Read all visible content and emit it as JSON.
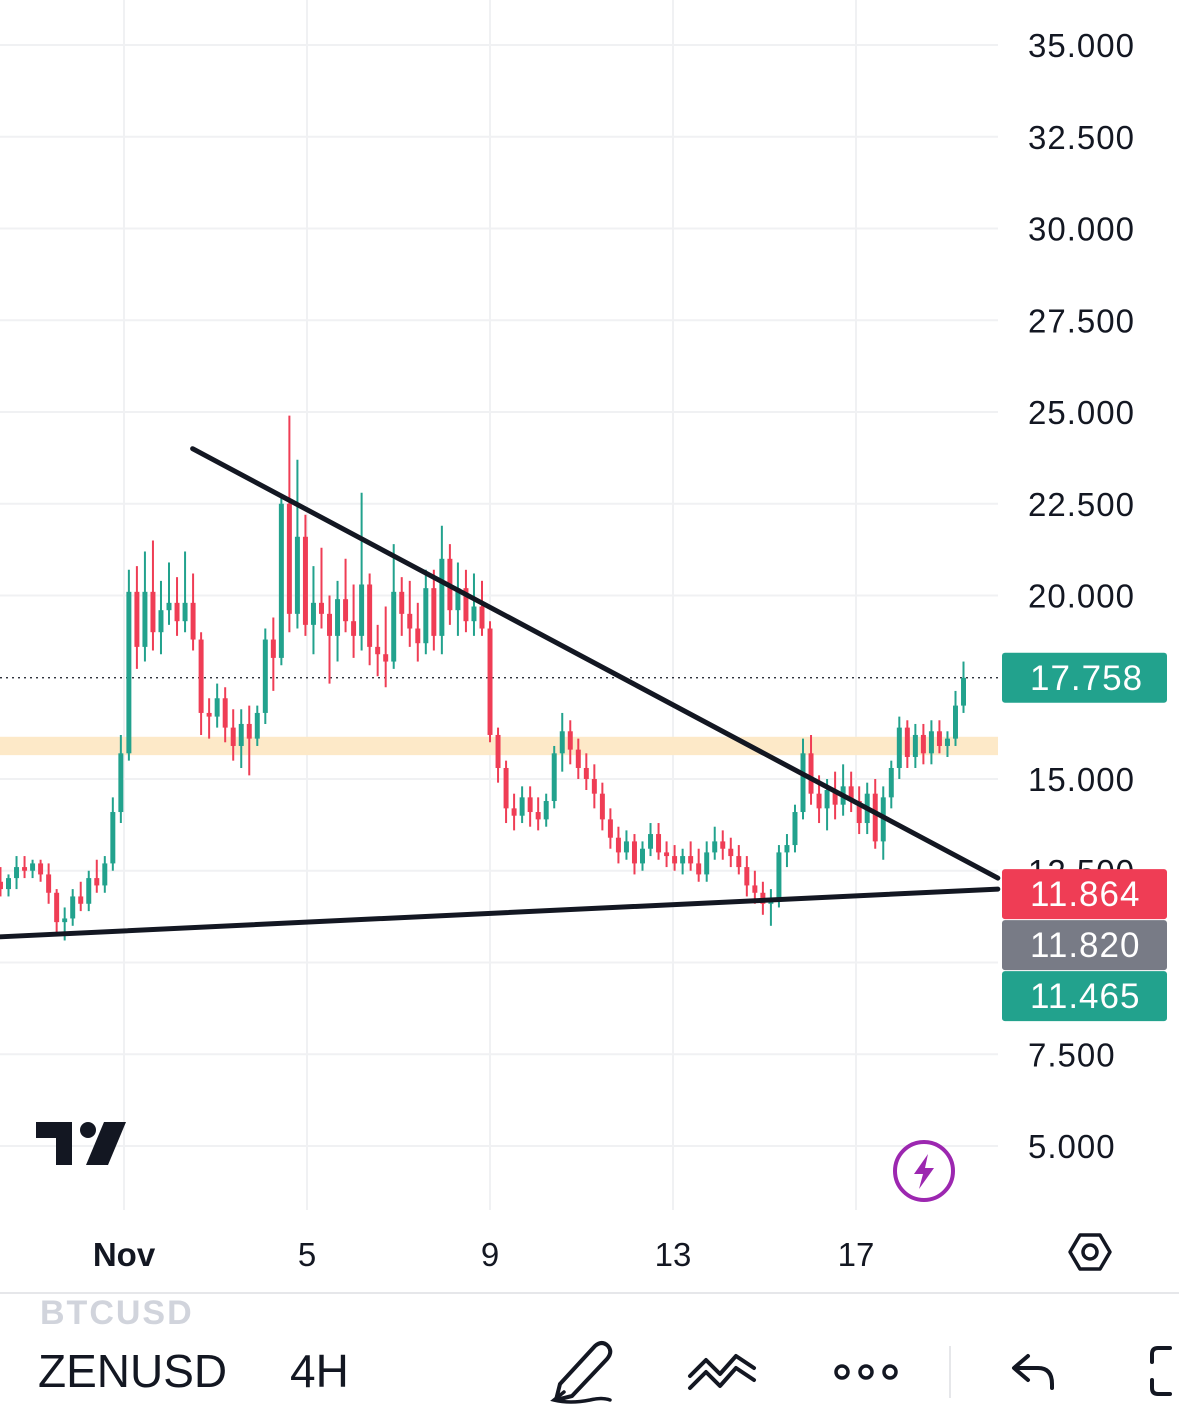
{
  "chart_data": {
    "type": "candlestick",
    "symbol": "ZENUSD",
    "interval": "4H",
    "y_axis": {
      "ticks": [
        "35.000",
        "32.500",
        "30.000",
        "27.500",
        "25.000",
        "22.500",
        "20.000",
        "15.000",
        "12.500",
        "7.500",
        "5.000"
      ],
      "ylim": [
        3.0,
        36.0
      ]
    },
    "x_axis": {
      "ticks": [
        {
          "label": "Nov",
          "day": 1
        },
        {
          "label": "5",
          "day": 5
        },
        {
          "label": "9",
          "day": 9
        },
        {
          "label": "13",
          "day": 13
        },
        {
          "label": "17",
          "day": 17
        }
      ],
      "xlim": [
        -1.7,
        21.8
      ]
    },
    "ohlc": [
      [
        12.2,
        12.6,
        11.8,
        12.0
      ],
      [
        12.0,
        12.4,
        11.8,
        12.3
      ],
      [
        12.3,
        12.9,
        12.0,
        12.6
      ],
      [
        12.6,
        12.9,
        12.3,
        12.5
      ],
      [
        12.5,
        12.8,
        12.3,
        12.7
      ],
      [
        12.7,
        12.8,
        12.2,
        12.4
      ],
      [
        12.4,
        12.7,
        11.6,
        11.9
      ],
      [
        11.9,
        12.0,
        10.8,
        11.1
      ],
      [
        11.1,
        11.5,
        10.6,
        11.2
      ],
      [
        11.2,
        12.0,
        11.0,
        11.8
      ],
      [
        11.8,
        12.2,
        11.4,
        11.6
      ],
      [
        11.6,
        12.5,
        11.4,
        12.3
      ],
      [
        12.3,
        12.8,
        11.9,
        12.1
      ],
      [
        12.1,
        12.9,
        11.9,
        12.7
      ],
      [
        12.7,
        14.5,
        12.5,
        14.1
      ],
      [
        14.1,
        16.2,
        13.8,
        15.7
      ],
      [
        15.7,
        20.7,
        15.5,
        20.1
      ],
      [
        20.1,
        20.8,
        18.0,
        18.6
      ],
      [
        18.6,
        21.2,
        18.2,
        20.1
      ],
      [
        20.1,
        21.5,
        18.5,
        19.0
      ],
      [
        19.0,
        20.4,
        18.4,
        19.6
      ],
      [
        19.6,
        20.9,
        19.2,
        19.8
      ],
      [
        19.8,
        20.5,
        18.9,
        19.3
      ],
      [
        19.3,
        21.2,
        19.0,
        19.8
      ],
      [
        19.8,
        20.6,
        18.5,
        18.8
      ],
      [
        18.8,
        19.0,
        16.2,
        16.8
      ],
      [
        16.8,
        17.2,
        16.1,
        16.7
      ],
      [
        16.7,
        17.6,
        16.4,
        17.2
      ],
      [
        17.2,
        17.5,
        16.0,
        16.4
      ],
      [
        16.4,
        16.9,
        15.5,
        15.9
      ],
      [
        15.9,
        16.9,
        15.3,
        16.5
      ],
      [
        16.5,
        17.0,
        15.1,
        16.1
      ],
      [
        16.1,
        17.0,
        15.9,
        16.8
      ],
      [
        16.8,
        19.1,
        16.5,
        18.8
      ],
      [
        18.8,
        19.4,
        17.4,
        18.3
      ],
      [
        18.3,
        22.7,
        18.1,
        22.5
      ],
      [
        22.5,
        24.9,
        19.0,
        19.5
      ],
      [
        19.5,
        23.7,
        19.1,
        21.6
      ],
      [
        21.6,
        22.2,
        18.9,
        19.2
      ],
      [
        19.2,
        20.8,
        18.4,
        19.8
      ],
      [
        19.8,
        21.3,
        19.1,
        19.5
      ],
      [
        19.5,
        20.0,
        17.6,
        18.9
      ],
      [
        18.9,
        20.4,
        18.2,
        19.9
      ],
      [
        19.9,
        21.0,
        19.0,
        19.3
      ],
      [
        19.3,
        20.3,
        18.3,
        18.9
      ],
      [
        18.9,
        22.8,
        18.5,
        20.3
      ],
      [
        20.3,
        20.6,
        18.1,
        18.6
      ],
      [
        18.6,
        19.2,
        17.8,
        18.4
      ],
      [
        18.4,
        19.7,
        17.5,
        18.2
      ],
      [
        18.2,
        21.4,
        18.0,
        20.1
      ],
      [
        20.1,
        20.5,
        18.9,
        19.5
      ],
      [
        19.5,
        20.4,
        18.6,
        19.1
      ],
      [
        19.1,
        19.8,
        18.2,
        18.7
      ],
      [
        18.7,
        20.7,
        18.4,
        20.2
      ],
      [
        20.2,
        20.7,
        18.5,
        18.9
      ],
      [
        18.9,
        21.9,
        18.4,
        21.0
      ],
      [
        21.0,
        21.4,
        19.2,
        19.6
      ],
      [
        19.6,
        20.9,
        18.9,
        20.2
      ],
      [
        20.2,
        20.7,
        19.0,
        19.3
      ],
      [
        19.3,
        20.6,
        18.9,
        19.7
      ],
      [
        19.7,
        20.4,
        18.9,
        19.1
      ],
      [
        19.1,
        19.3,
        16.0,
        16.2
      ],
      [
        16.2,
        16.4,
        14.9,
        15.3
      ],
      [
        15.3,
        15.5,
        13.8,
        14.2
      ],
      [
        14.2,
        14.6,
        13.6,
        14.0
      ],
      [
        14.0,
        14.8,
        13.8,
        14.5
      ],
      [
        14.5,
        14.8,
        13.7,
        14.1
      ],
      [
        14.1,
        14.5,
        13.6,
        13.9
      ],
      [
        13.9,
        14.6,
        13.7,
        14.4
      ],
      [
        14.4,
        15.9,
        14.2,
        15.7
      ],
      [
        15.7,
        16.8,
        15.2,
        16.3
      ],
      [
        16.3,
        16.6,
        15.4,
        15.8
      ],
      [
        15.8,
        16.1,
        15.0,
        15.3
      ],
      [
        15.3,
        15.7,
        14.7,
        15.0
      ],
      [
        15.0,
        15.4,
        14.2,
        14.6
      ],
      [
        14.6,
        14.9,
        13.6,
        13.9
      ],
      [
        13.9,
        14.2,
        13.1,
        13.4
      ],
      [
        13.4,
        13.7,
        12.7,
        13.0
      ],
      [
        13.0,
        13.6,
        12.8,
        13.3
      ],
      [
        13.3,
        13.5,
        12.4,
        12.7
      ],
      [
        12.7,
        13.3,
        12.5,
        13.1
      ],
      [
        13.1,
        13.8,
        12.9,
        13.5
      ],
      [
        13.5,
        13.8,
        12.8,
        13.0
      ],
      [
        13.0,
        13.3,
        12.6,
        12.9
      ],
      [
        12.9,
        13.2,
        12.5,
        12.7
      ],
      [
        12.7,
        13.1,
        12.4,
        12.9
      ],
      [
        12.9,
        13.3,
        12.5,
        12.7
      ],
      [
        12.7,
        13.1,
        12.2,
        12.4
      ],
      [
        12.4,
        13.3,
        12.2,
        13.0
      ],
      [
        13.0,
        13.7,
        12.8,
        13.3
      ],
      [
        13.3,
        13.6,
        12.8,
        13.1
      ],
      [
        13.1,
        13.4,
        12.6,
        12.9
      ],
      [
        12.9,
        13.2,
        12.4,
        12.6
      ],
      [
        12.6,
        12.9,
        11.8,
        12.1
      ],
      [
        12.1,
        12.5,
        11.6,
        11.9
      ],
      [
        11.9,
        12.2,
        11.3,
        11.6
      ],
      [
        11.6,
        12.0,
        11.0,
        11.7
      ],
      [
        11.7,
        13.2,
        11.5,
        13.0
      ],
      [
        13.0,
        13.5,
        12.6,
        13.2
      ],
      [
        13.2,
        14.3,
        13.0,
        14.1
      ],
      [
        14.1,
        16.1,
        13.9,
        15.7
      ],
      [
        15.7,
        16.2,
        14.3,
        14.6
      ],
      [
        14.6,
        15.1,
        13.8,
        14.2
      ],
      [
        14.2,
        15.0,
        13.6,
        14.7
      ],
      [
        14.7,
        15.2,
        13.9,
        14.3
      ],
      [
        14.3,
        15.4,
        14.0,
        14.8
      ],
      [
        14.8,
        15.2,
        14.1,
        14.4
      ],
      [
        14.4,
        14.8,
        13.5,
        13.8
      ],
      [
        13.8,
        14.9,
        13.5,
        14.6
      ],
      [
        14.6,
        15.0,
        13.1,
        13.3
      ],
      [
        13.3,
        14.8,
        12.8,
        14.5
      ],
      [
        14.5,
        15.5,
        14.2,
        15.3
      ],
      [
        15.3,
        16.7,
        15.0,
        16.4
      ],
      [
        16.4,
        16.6,
        15.3,
        15.6
      ],
      [
        15.6,
        16.5,
        15.3,
        16.2
      ],
      [
        16.2,
        16.5,
        15.4,
        15.7
      ],
      [
        15.7,
        16.6,
        15.4,
        16.3
      ],
      [
        16.3,
        16.6,
        15.7,
        15.9
      ],
      [
        15.9,
        16.3,
        15.6,
        16.1
      ],
      [
        16.1,
        17.4,
        15.9,
        17.0
      ],
      [
        17.0,
        18.2,
        16.8,
        17.758
      ]
    ],
    "bull_color": "#22a28d",
    "bear_color": "#ef3d55",
    "last_day": 19.35,
    "trendlines": [
      {
        "name": "descending-resistance",
        "from": [
          2.5,
          24.0
        ],
        "to": [
          20.1,
          12.3
        ]
      },
      {
        "name": "ascending-support",
        "from": [
          -1.7,
          10.7
        ],
        "to": [
          20.1,
          12.0
        ]
      }
    ],
    "zone": {
      "from": 15.65,
      "to": 16.15,
      "color": "#fde9c8"
    },
    "current_price_line": 17.758,
    "price_badges": [
      {
        "value": "17.758",
        "price": 17.758,
        "color": "#22a28d"
      },
      {
        "value": "11.864",
        "price": 11.864,
        "color": "#ef3d55"
      },
      {
        "value": "11.820",
        "price": 11.82,
        "color": "#787b86"
      },
      {
        "value": "11.465",
        "price": 11.465,
        "color": "#22a28d"
      }
    ],
    "grid": true
  },
  "toolbar": {
    "previous_symbol": "BTCUSD",
    "symbol": "ZENUSD",
    "interval": "4H",
    "icons": [
      "pen-tool-icon",
      "trend-drawing-icon",
      "more-options-icon",
      "undo-icon",
      "fullscreen-icon"
    ]
  },
  "icons": {
    "logo": "tradingview-logo",
    "lightning": "lightning-icon",
    "settings": "settings-hexagon-icon"
  },
  "colors": {
    "accent_green": "#22a28d",
    "accent_red": "#ef3d55",
    "neutral_badge": "#787b86",
    "lightning_purple": "#9c27b0",
    "grid": "#f0f1f3"
  }
}
